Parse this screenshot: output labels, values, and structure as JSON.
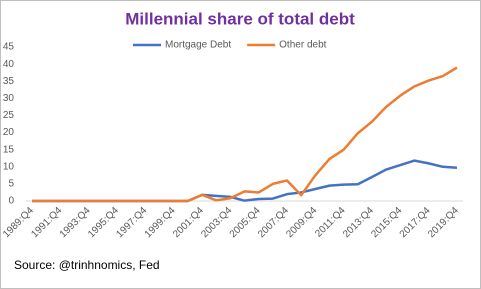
{
  "chart_data": {
    "type": "line",
    "title": "Millennial share of total debt",
    "source": "Source: @trinhnomics, Fed",
    "categories": [
      "1989:Q4",
      null,
      "1991:Q4",
      null,
      "1993:Q4",
      null,
      "1995:Q4",
      null,
      "1997:Q4",
      null,
      "1999:Q4",
      null,
      "2001:Q4",
      null,
      "2003:Q4",
      null,
      "2005:Q4",
      null,
      "2007:Q4",
      null,
      "2009:Q4",
      null,
      "2011:Q4",
      null,
      "2013:Q4",
      null,
      "2015:Q4",
      null,
      "2017:Q4",
      null,
      "2019:Q4"
    ],
    "series": [
      {
        "name": "Mortgage Debt",
        "color": "#4472c4",
        "values": [
          0,
          0,
          0,
          0,
          0,
          0,
          0,
          0,
          0,
          0,
          0,
          0,
          1.8,
          1.5,
          1.2,
          0.1,
          0.6,
          0.7,
          2,
          2.5,
          3.5,
          4.5,
          4.8,
          4.9,
          7,
          9.2,
          10.5,
          11.8,
          11,
          10,
          9.7
        ]
      },
      {
        "name": "Other debt",
        "color": "#ed7d31",
        "values": [
          0,
          0,
          0,
          0,
          0,
          0,
          0,
          0,
          0,
          0,
          0,
          0,
          1.8,
          0.2,
          0.8,
          2.8,
          2.5,
          5,
          6,
          1.7,
          7.5,
          12.3,
          15,
          19.8,
          23.2,
          27.5,
          30.8,
          33.5,
          35.2,
          36.5,
          39
        ]
      }
    ],
    "ylim": [
      0,
      45
    ],
    "yticks": [
      0,
      5,
      10,
      15,
      20,
      25,
      30,
      35,
      40,
      45
    ],
    "grid": false,
    "legend": "top"
  }
}
